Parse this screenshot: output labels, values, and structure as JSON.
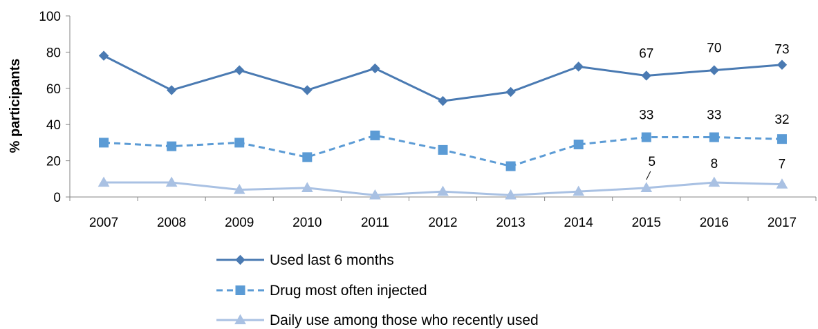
{
  "chart_data": {
    "type": "line",
    "categories": [
      "2007",
      "2008",
      "2009",
      "2010",
      "2011",
      "2012",
      "2013",
      "2014",
      "2015",
      "2016",
      "2017"
    ],
    "ylabel": "% participants",
    "ylim": [
      0,
      100
    ],
    "yticks": [
      0,
      20,
      40,
      60,
      80,
      100
    ],
    "grid": false,
    "legend_position": "bottom",
    "series": [
      {
        "name": "Used last 6 months",
        "values": [
          78,
          59,
          70,
          59,
          71,
          53,
          58,
          72,
          67,
          70,
          73
        ],
        "color": "#4a7ab2",
        "marker": "diamond",
        "line_style": "solid",
        "labeled_points": [
          {
            "index": 8,
            "text": "67"
          },
          {
            "index": 9,
            "text": "70"
          },
          {
            "index": 10,
            "text": "73"
          }
        ]
      },
      {
        "name": "Drug most often injected",
        "values": [
          30,
          28,
          30,
          22,
          34,
          26,
          17,
          29,
          33,
          33,
          32
        ],
        "color": "#5b9bd5",
        "marker": "square",
        "line_style": "dashed",
        "labeled_points": [
          {
            "index": 8,
            "text": "33"
          },
          {
            "index": 9,
            "text": "33"
          },
          {
            "index": 10,
            "text": "32"
          }
        ]
      },
      {
        "name": "Daily use among those who recently used",
        "values": [
          8,
          8,
          4,
          5,
          1,
          3,
          1,
          3,
          5,
          8,
          7
        ],
        "color": "#a9c1e3",
        "marker": "triangle",
        "line_style": "solid",
        "labeled_points": [
          {
            "index": 8,
            "text": "5"
          },
          {
            "index": 9,
            "text": "8"
          },
          {
            "index": 10,
            "text": "7"
          }
        ]
      }
    ]
  }
}
